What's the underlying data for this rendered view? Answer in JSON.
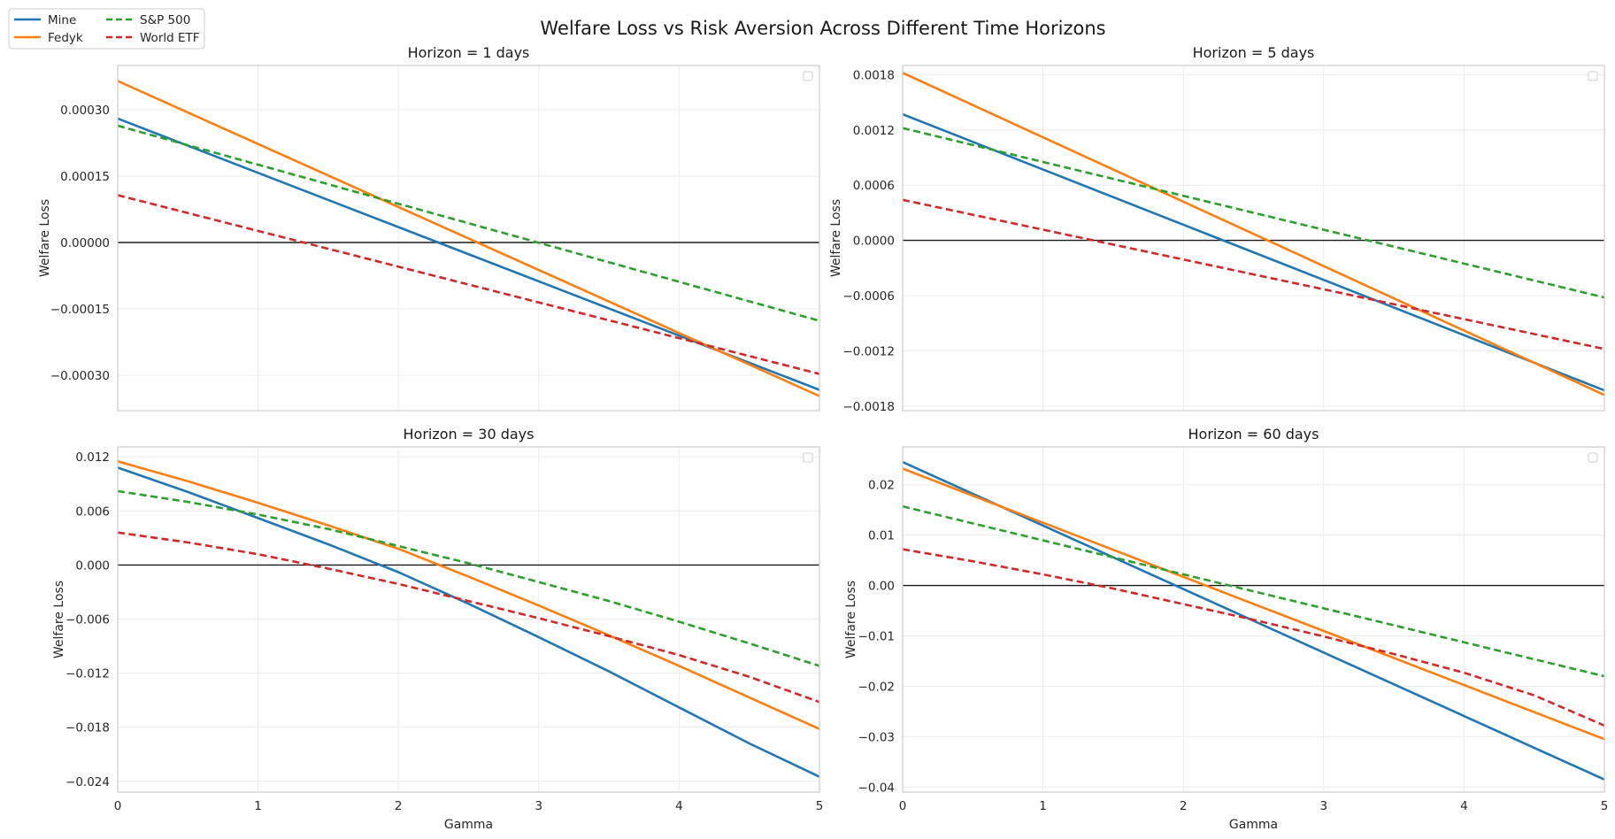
{
  "figure": {
    "title": "Welfare Loss vs Risk Aversion Across Different Time Horizons"
  },
  "legend": {
    "placement": "top-left",
    "entries": [
      {
        "name": "Mine",
        "color": "#1f77b4",
        "dash": false
      },
      {
        "name": "Fedyk",
        "color": "#ff7f0e",
        "dash": false
      },
      {
        "name": "S&P 500",
        "color": "#2ca02c",
        "dash": true
      },
      {
        "name": "World ETF",
        "color": "#d62728",
        "dash": true
      }
    ]
  },
  "chart_data": [
    {
      "type": "line",
      "title": "Horizon = 1 days",
      "xlabel": "",
      "ylabel": "Welfare Loss",
      "xlim": [
        0,
        5
      ],
      "ylim": [
        -0.00038,
        0.0004
      ],
      "xticks": [
        0,
        1,
        2,
        3,
        4,
        5
      ],
      "xtick_labels": [],
      "yticks": [
        -0.0003,
        -0.00015,
        0,
        0.00015,
        0.0003
      ],
      "ytick_labels": [
        "−0.00030",
        "−0.00015",
        "0.00000",
        "0.00015",
        "0.00030"
      ],
      "grid": true,
      "zero_line": true,
      "series": [
        {
          "name": "Mine",
          "x": [
            0,
            5
          ],
          "y": [
            0.00028,
            -0.000333
          ]
        },
        {
          "name": "Fedyk",
          "x": [
            0,
            5
          ],
          "y": [
            0.000365,
            -0.000347
          ]
        },
        {
          "name": "S&P 500",
          "x": [
            0,
            5
          ],
          "y": [
            0.000264,
            -0.000177
          ]
        },
        {
          "name": "World ETF",
          "x": [
            0,
            5
          ],
          "y": [
            0.000107,
            -0.000297
          ]
        }
      ]
    },
    {
      "type": "line",
      "title": "Horizon = 5 days",
      "xlabel": "",
      "ylabel": "Welfare Loss",
      "xlim": [
        0,
        5
      ],
      "ylim": [
        -0.00185,
        0.0019
      ],
      "xticks": [
        0,
        1,
        2,
        3,
        4,
        5
      ],
      "xtick_labels": [],
      "yticks": [
        -0.0018,
        -0.0012,
        -0.0006,
        0,
        0.0006,
        0.0012,
        0.0018
      ],
      "ytick_labels": [
        "−0.0018",
        "−0.0012",
        "−0.0006",
        "0.0000",
        "0.0006",
        "0.0012",
        "0.0018"
      ],
      "grid": true,
      "zero_line": true,
      "series": [
        {
          "name": "Mine",
          "x": [
            0,
            5
          ],
          "y": [
            0.00137,
            -0.00163
          ]
        },
        {
          "name": "Fedyk",
          "x": [
            0,
            5
          ],
          "y": [
            0.00182,
            -0.00168
          ]
        },
        {
          "name": "S&P 500",
          "x": [
            0,
            5
          ],
          "y": [
            0.00122,
            -0.00062
          ]
        },
        {
          "name": "World ETF",
          "x": [
            0,
            5
          ],
          "y": [
            0.00044,
            -0.00118
          ]
        }
      ]
    },
    {
      "type": "line",
      "title": "Horizon = 30 days",
      "xlabel": "Gamma",
      "ylabel": "Welfare Loss",
      "xlim": [
        0,
        5
      ],
      "ylim": [
        -0.0252,
        0.0131
      ],
      "xticks": [
        0,
        1,
        2,
        3,
        4,
        5
      ],
      "xtick_labels": [
        "0",
        "1",
        "2",
        "3",
        "4",
        "5"
      ],
      "yticks": [
        -0.024,
        -0.018,
        -0.012,
        -0.006,
        0,
        0.006,
        0.012
      ],
      "ytick_labels": [
        "−0.024",
        "−0.018",
        "−0.012",
        "−0.006",
        "0.000",
        "0.006",
        "0.012"
      ],
      "grid": true,
      "zero_line": true,
      "series": [
        {
          "name": "Mine",
          "x": [
            0,
            0.5,
            1,
            1.5,
            2,
            2.5,
            3,
            3.5,
            4,
            4.5,
            5
          ],
          "y": [
            0.0108,
            0.0081,
            0.0052,
            0.0023,
            -0.0008,
            -0.0043,
            -0.008,
            -0.0118,
            -0.0158,
            -0.0198,
            -0.0235
          ]
        },
        {
          "name": "Fedyk",
          "x": [
            0,
            0.5,
            1,
            1.5,
            2,
            2.5,
            3,
            3.5,
            4,
            4.5,
            5
          ],
          "y": [
            0.0115,
            0.0093,
            0.0069,
            0.0044,
            0.0018,
            -0.0013,
            -0.0045,
            -0.0078,
            -0.0112,
            -0.0147,
            -0.0182
          ]
        },
        {
          "name": "S&P 500",
          "x": [
            0,
            0.5,
            1,
            1.5,
            2,
            2.5,
            3,
            3.5,
            4,
            4.5,
            5
          ],
          "y": [
            0.0082,
            0.007,
            0.0056,
            0.004,
            0.0021,
            0.0002,
            -0.0019,
            -0.004,
            -0.0063,
            -0.0087,
            -0.0112
          ]
        },
        {
          "name": "World ETF",
          "x": [
            0,
            0.5,
            1,
            1.5,
            2,
            2.5,
            3,
            3.5,
            4,
            4.5,
            5
          ],
          "y": [
            0.0036,
            0.0025,
            0.0012,
            -0.0004,
            -0.0021,
            -0.004,
            -0.0059,
            -0.0079,
            -0.01,
            -0.0124,
            -0.0152
          ]
        }
      ]
    },
    {
      "type": "line",
      "title": "Horizon = 60 days",
      "xlabel": "Gamma",
      "ylabel": "Welfare Loss",
      "xlim": [
        0,
        5
      ],
      "ylim": [
        -0.041,
        0.0275
      ],
      "xticks": [
        0,
        1,
        2,
        3,
        4,
        5
      ],
      "xtick_labels": [
        "0",
        "1",
        "2",
        "3",
        "4",
        "5"
      ],
      "yticks": [
        -0.04,
        -0.03,
        -0.02,
        -0.01,
        0,
        0.01,
        0.02
      ],
      "ytick_labels": [
        "−0.04",
        "−0.03",
        "−0.02",
        "−0.01",
        "0.00",
        "0.01",
        "0.02"
      ],
      "grid": true,
      "zero_line": true,
      "series": [
        {
          "name": "Mine",
          "x": [
            0,
            5
          ],
          "y": [
            0.0245,
            -0.0385
          ]
        },
        {
          "name": "Fedyk",
          "x": [
            0,
            5
          ],
          "y": [
            0.0232,
            -0.0305
          ]
        },
        {
          "name": "S&P 500",
          "x": [
            0,
            5
          ],
          "y": [
            0.0157,
            -0.018
          ]
        },
        {
          "name": "World ETF",
          "x": [
            0,
            0.5,
            1,
            1.5,
            2,
            2.5,
            3,
            3.5,
            4,
            4.5,
            5
          ],
          "y": [
            0.0072,
            0.0048,
            0.0022,
            -0.0006,
            -0.0037,
            -0.0068,
            -0.0101,
            -0.0136,
            -0.0173,
            -0.0218,
            -0.0278
          ]
        }
      ]
    }
  ]
}
